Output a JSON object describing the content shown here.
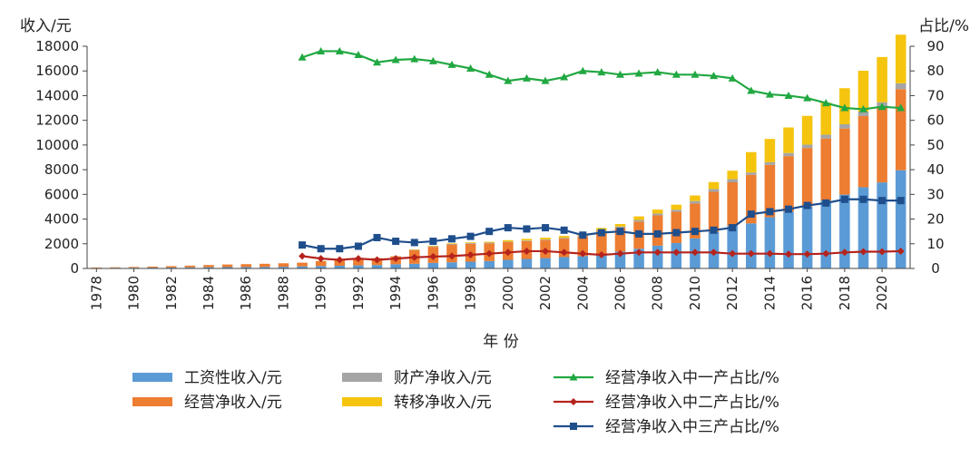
{
  "chart_data": {
    "type": "bar",
    "stacked": true,
    "xlabel": "年 份",
    "ylabel_left": "收入/元",
    "ylabel_right": "占比/%",
    "ylim_left": [
      0,
      18000
    ],
    "ylim_right": [
      0,
      90
    ],
    "yticks_left": [
      0,
      2000,
      4000,
      6000,
      8000,
      10000,
      12000,
      14000,
      16000,
      18000
    ],
    "yticks_right": [
      0,
      10,
      20,
      30,
      40,
      50,
      60,
      70,
      80,
      90
    ],
    "years": [
      1978,
      1979,
      1980,
      1981,
      1982,
      1983,
      1984,
      1985,
      1986,
      1987,
      1988,
      1989,
      1990,
      1991,
      1992,
      1993,
      1994,
      1995,
      1996,
      1997,
      1998,
      1999,
      2000,
      2001,
      2002,
      2003,
      2004,
      2005,
      2006,
      2007,
      2008,
      2009,
      2010,
      2011,
      2012,
      2013,
      2014,
      2015,
      2016,
      2017,
      2018,
      2019,
      2020,
      2021
    ],
    "xtick_labels": [
      "1978",
      "1980",
      "1982",
      "1984",
      "1986",
      "1988",
      "1990",
      "1992",
      "1994",
      "1996",
      "1998",
      "2000",
      "2002",
      "2004",
      "2006",
      "2008",
      "2010",
      "2012",
      "2014",
      "2016",
      "2018",
      "2020"
    ],
    "bar_series": [
      {
        "name": "工资性收入/元",
        "color": "#5b9bd5",
        "values": [
          50,
          55,
          60,
          70,
          80,
          90,
          100,
          110,
          120,
          130,
          140,
          170,
          200,
          220,
          250,
          280,
          340,
          380,
          450,
          500,
          550,
          600,
          700,
          770,
          840,
          920,
          1000,
          1170,
          1370,
          1600,
          1850,
          2060,
          2430,
          2960,
          3450,
          3650,
          4150,
          4600,
          5020,
          5500,
          5980,
          6580,
          6970,
          7960
        ]
      },
      {
        "name": "经营净收入/元",
        "color": "#ed7d31",
        "values": [
          20,
          40,
          60,
          80,
          110,
          140,
          180,
          210,
          230,
          250,
          280,
          300,
          400,
          450,
          500,
          560,
          650,
          1100,
          1300,
          1440,
          1450,
          1430,
          1430,
          1450,
          1460,
          1500,
          1600,
          1840,
          1930,
          2200,
          2450,
          2530,
          2830,
          3250,
          3530,
          3930,
          4240,
          4500,
          4740,
          5030,
          5360,
          5760,
          6080,
          6570
        ]
      },
      {
        "name": "财产净收入/元",
        "color": "#a5a5a5",
        "values": [
          0,
          0,
          0,
          0,
          0,
          0,
          0,
          0,
          0,
          0,
          0,
          0,
          0,
          0,
          0,
          0,
          0,
          40,
          45,
          50,
          55,
          60,
          45,
          47,
          50,
          65,
          76,
          88,
          100,
          128,
          148,
          167,
          202,
          228,
          249,
          195,
          222,
          252,
          272,
          303,
          342,
          377,
          419,
          469
        ]
      },
      {
        "name": "转移净收入/元",
        "color": "#f5c40e",
        "values": [
          0,
          0,
          0,
          0,
          0,
          0,
          0,
          0,
          0,
          0,
          0,
          0,
          0,
          0,
          0,
          0,
          0,
          30,
          40,
          50,
          60,
          70,
          120,
          130,
          140,
          150,
          160,
          180,
          200,
          290,
          320,
          410,
          450,
          560,
          690,
          1650,
          1880,
          2070,
          2330,
          2600,
          2920,
          3300,
          3660,
          3940
        ]
      }
    ],
    "line_series": [
      {
        "name": "经营净收入中一产占比/%",
        "color": "#21a842",
        "marker": "triangle",
        "start_year": 1989,
        "values": [
          85.5,
          88.0,
          88.0,
          86.5,
          83.5,
          84.5,
          84.8,
          84.0,
          82.5,
          81.0,
          78.5,
          76.0,
          77.0,
          76.0,
          77.5,
          80.0,
          79.5,
          78.5,
          79.0,
          79.5,
          78.5,
          78.5,
          78.0,
          77.0,
          72.0,
          70.5,
          70.0,
          69.0,
          67.0,
          65.0,
          64.5,
          65.5,
          65.0
        ]
      },
      {
        "name": "经营净收入中二产占比/%",
        "color": "#b5231d",
        "marker": "diamond",
        "start_year": 1989,
        "values": [
          5.0,
          4.0,
          3.5,
          4.0,
          3.5,
          4.0,
          4.5,
          4.8,
          5.0,
          5.5,
          6.0,
          6.5,
          7.0,
          7.0,
          6.5,
          6.0,
          5.5,
          6.0,
          6.5,
          6.5,
          6.5,
          6.5,
          6.5,
          6.0,
          6.0,
          6.0,
          5.8,
          5.8,
          6.0,
          6.5,
          6.8,
          6.8,
          7.0
        ]
      },
      {
        "name": "经营净收入中三产占比/%",
        "color": "#1f4e8c",
        "marker": "square",
        "start_year": 1989,
        "values": [
          9.5,
          8.0,
          8.0,
          9.0,
          12.5,
          11.0,
          10.5,
          11.0,
          12.0,
          13.0,
          15.0,
          16.5,
          16.0,
          16.5,
          15.5,
          13.5,
          14.5,
          15.0,
          14.0,
          14.0,
          14.5,
          15.0,
          15.5,
          16.5,
          22.0,
          23.0,
          24.0,
          25.5,
          26.5,
          28.0,
          28.0,
          27.5,
          27.5
        ]
      }
    ],
    "legend": {
      "col1": [
        "工资性收入/元",
        "经营净收入/元"
      ],
      "col2": [
        "财产净收入/元",
        "转移净收入/元"
      ],
      "col3": [
        "经营净收入中一产占比/%",
        "经营净收入中二产占比/%",
        "经营净收入中三产占比/%"
      ]
    }
  }
}
